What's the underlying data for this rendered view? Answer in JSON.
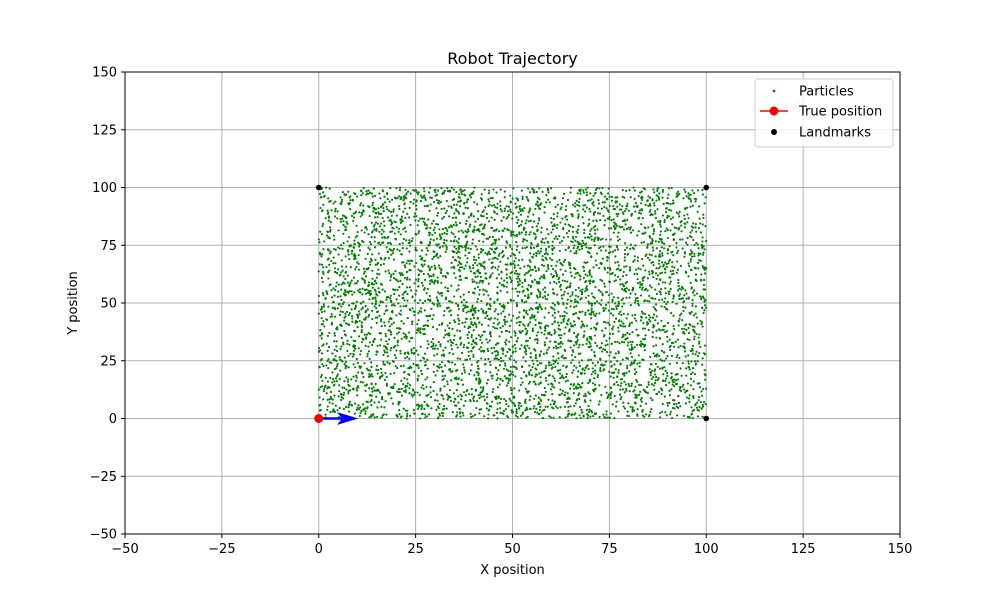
{
  "chart_data": {
    "type": "scatter",
    "title": "Robot Trajectory",
    "xlabel": "X position",
    "ylabel": "Y position",
    "xlim": [
      -50,
      150
    ],
    "ylim": [
      -50,
      150
    ],
    "xticks": [
      -50,
      -25,
      0,
      25,
      50,
      75,
      100,
      125,
      150
    ],
    "yticks": [
      -50,
      -25,
      0,
      25,
      50,
      75,
      100,
      125,
      150
    ],
    "xtick_labels": [
      "−50",
      "−25",
      "0",
      "25",
      "50",
      "75",
      "100",
      "125",
      "150"
    ],
    "ytick_labels": [
      "−50",
      "−25",
      "0",
      "25",
      "50",
      "75",
      "100",
      "125",
      "150"
    ],
    "grid": true,
    "legend_position": "top-right",
    "series": [
      {
        "name": "Particles",
        "kind": "scatter",
        "color": "#008000",
        "distribution": "uniform",
        "count": 5000,
        "x_range": [
          0,
          100
        ],
        "y_range": [
          0,
          100
        ]
      },
      {
        "name": "True position",
        "kind": "line-marker",
        "color": "#ff0000",
        "points": [
          [
            0,
            0
          ]
        ]
      },
      {
        "name": "Landmarks",
        "kind": "scatter",
        "color": "#000000",
        "points": [
          [
            0,
            0
          ],
          [
            0,
            100
          ],
          [
            100,
            0
          ],
          [
            100,
            100
          ]
        ]
      }
    ],
    "heading_arrow": {
      "color": "#0000ff",
      "from": [
        0,
        0
      ],
      "to": [
        10,
        0
      ]
    }
  }
}
